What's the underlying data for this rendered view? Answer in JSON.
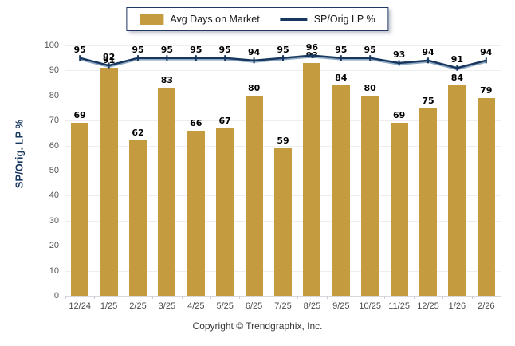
{
  "page": {
    "footer": "Copyright © Trendgraphix, Inc."
  },
  "legend": {
    "items": [
      {
        "label": "Avg Days on Market",
        "swatch": "bar-swatch",
        "color": "#C59B40"
      },
      {
        "label": "SP/Orig LP %",
        "swatch": "line-swatch",
        "color": "#17375E"
      }
    ]
  },
  "chart_data": {
    "type": "bar",
    "categories": [
      "12/24",
      "1/25",
      "2/25",
      "3/25",
      "4/25",
      "5/25",
      "6/25",
      "7/25",
      "8/25",
      "9/25",
      "10/25",
      "11/25",
      "12/25",
      "1/26",
      "2/26"
    ],
    "series": [
      {
        "name": "Avg Days on Market",
        "type": "bar",
        "color": "#C59B40",
        "values": [
          69,
          91,
          62,
          83,
          66,
          67,
          80,
          59,
          93,
          84,
          80,
          69,
          75,
          84,
          79
        ]
      },
      {
        "name": "SP/Orig LP %",
        "type": "line",
        "color": "#17375E",
        "values": [
          95,
          92,
          95,
          95,
          95,
          95,
          94,
          95,
          96,
          95,
          95,
          93,
          94,
          91,
          94
        ]
      }
    ],
    "title": "",
    "xlabel": "",
    "ylabel": "SP/Orig. LP %",
    "ylim": [
      0,
      100
    ],
    "ytick_step": 10,
    "grid": true,
    "legend_position": "top-center",
    "data_labels": true
  }
}
